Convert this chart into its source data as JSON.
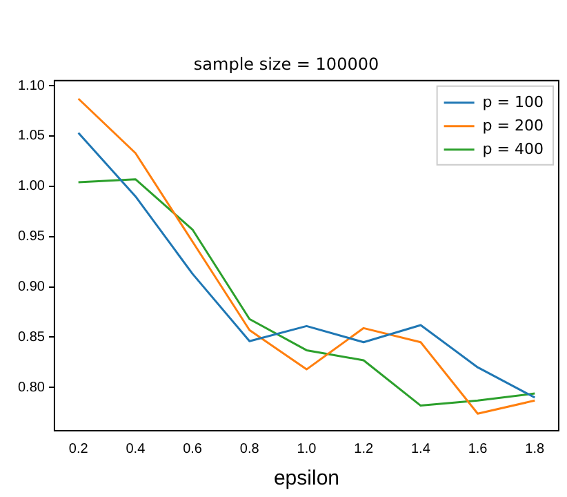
{
  "chart_data": {
    "type": "line",
    "title": "sample size = 100000",
    "xlabel": "epsilon",
    "x": [
      0.2,
      0.4,
      0.6,
      0.8,
      1.0,
      1.2,
      1.4,
      1.6,
      1.8
    ],
    "xlim": [
      0.116,
      1.884
    ],
    "xticks": [
      {
        "value": 0.2,
        "label": "0.2"
      },
      {
        "value": 0.4,
        "label": "0.4"
      },
      {
        "value": 0.6,
        "label": "0.6"
      },
      {
        "value": 0.8,
        "label": "0.8"
      },
      {
        "value": 1.0,
        "label": "1.0"
      },
      {
        "value": 1.2,
        "label": "1.2"
      },
      {
        "value": 1.4,
        "label": "1.4"
      },
      {
        "value": 1.6,
        "label": "1.6"
      },
      {
        "value": 1.8,
        "label": "1.8"
      }
    ],
    "ylim": [
      0.757,
      1.105
    ],
    "yticks": [
      {
        "value": 0.8,
        "label": "0.80"
      },
      {
        "value": 0.85,
        "label": "0.85"
      },
      {
        "value": 0.9,
        "label": "0.90"
      },
      {
        "value": 0.95,
        "label": "0.95"
      },
      {
        "value": 1.0,
        "label": "1.00"
      },
      {
        "value": 1.05,
        "label": "1.05"
      },
      {
        "value": 1.1,
        "label": "1.10"
      }
    ],
    "grid": false,
    "legend": "top right",
    "series": [
      {
        "name": "p = 100",
        "color": "#1f77b4",
        "values": [
          1.053,
          0.99,
          0.913,
          0.846,
          0.861,
          0.845,
          0.862,
          0.82,
          0.79
        ]
      },
      {
        "name": "p = 200",
        "color": "#ff7f0e",
        "values": [
          1.087,
          1.033,
          0.945,
          0.857,
          0.818,
          0.859,
          0.845,
          0.774,
          0.787
        ]
      },
      {
        "name": "p = 400",
        "color": "#2ca02c",
        "values": [
          1.004,
          1.007,
          0.957,
          0.868,
          0.837,
          0.827,
          0.782,
          0.787,
          0.794
        ]
      }
    ]
  }
}
